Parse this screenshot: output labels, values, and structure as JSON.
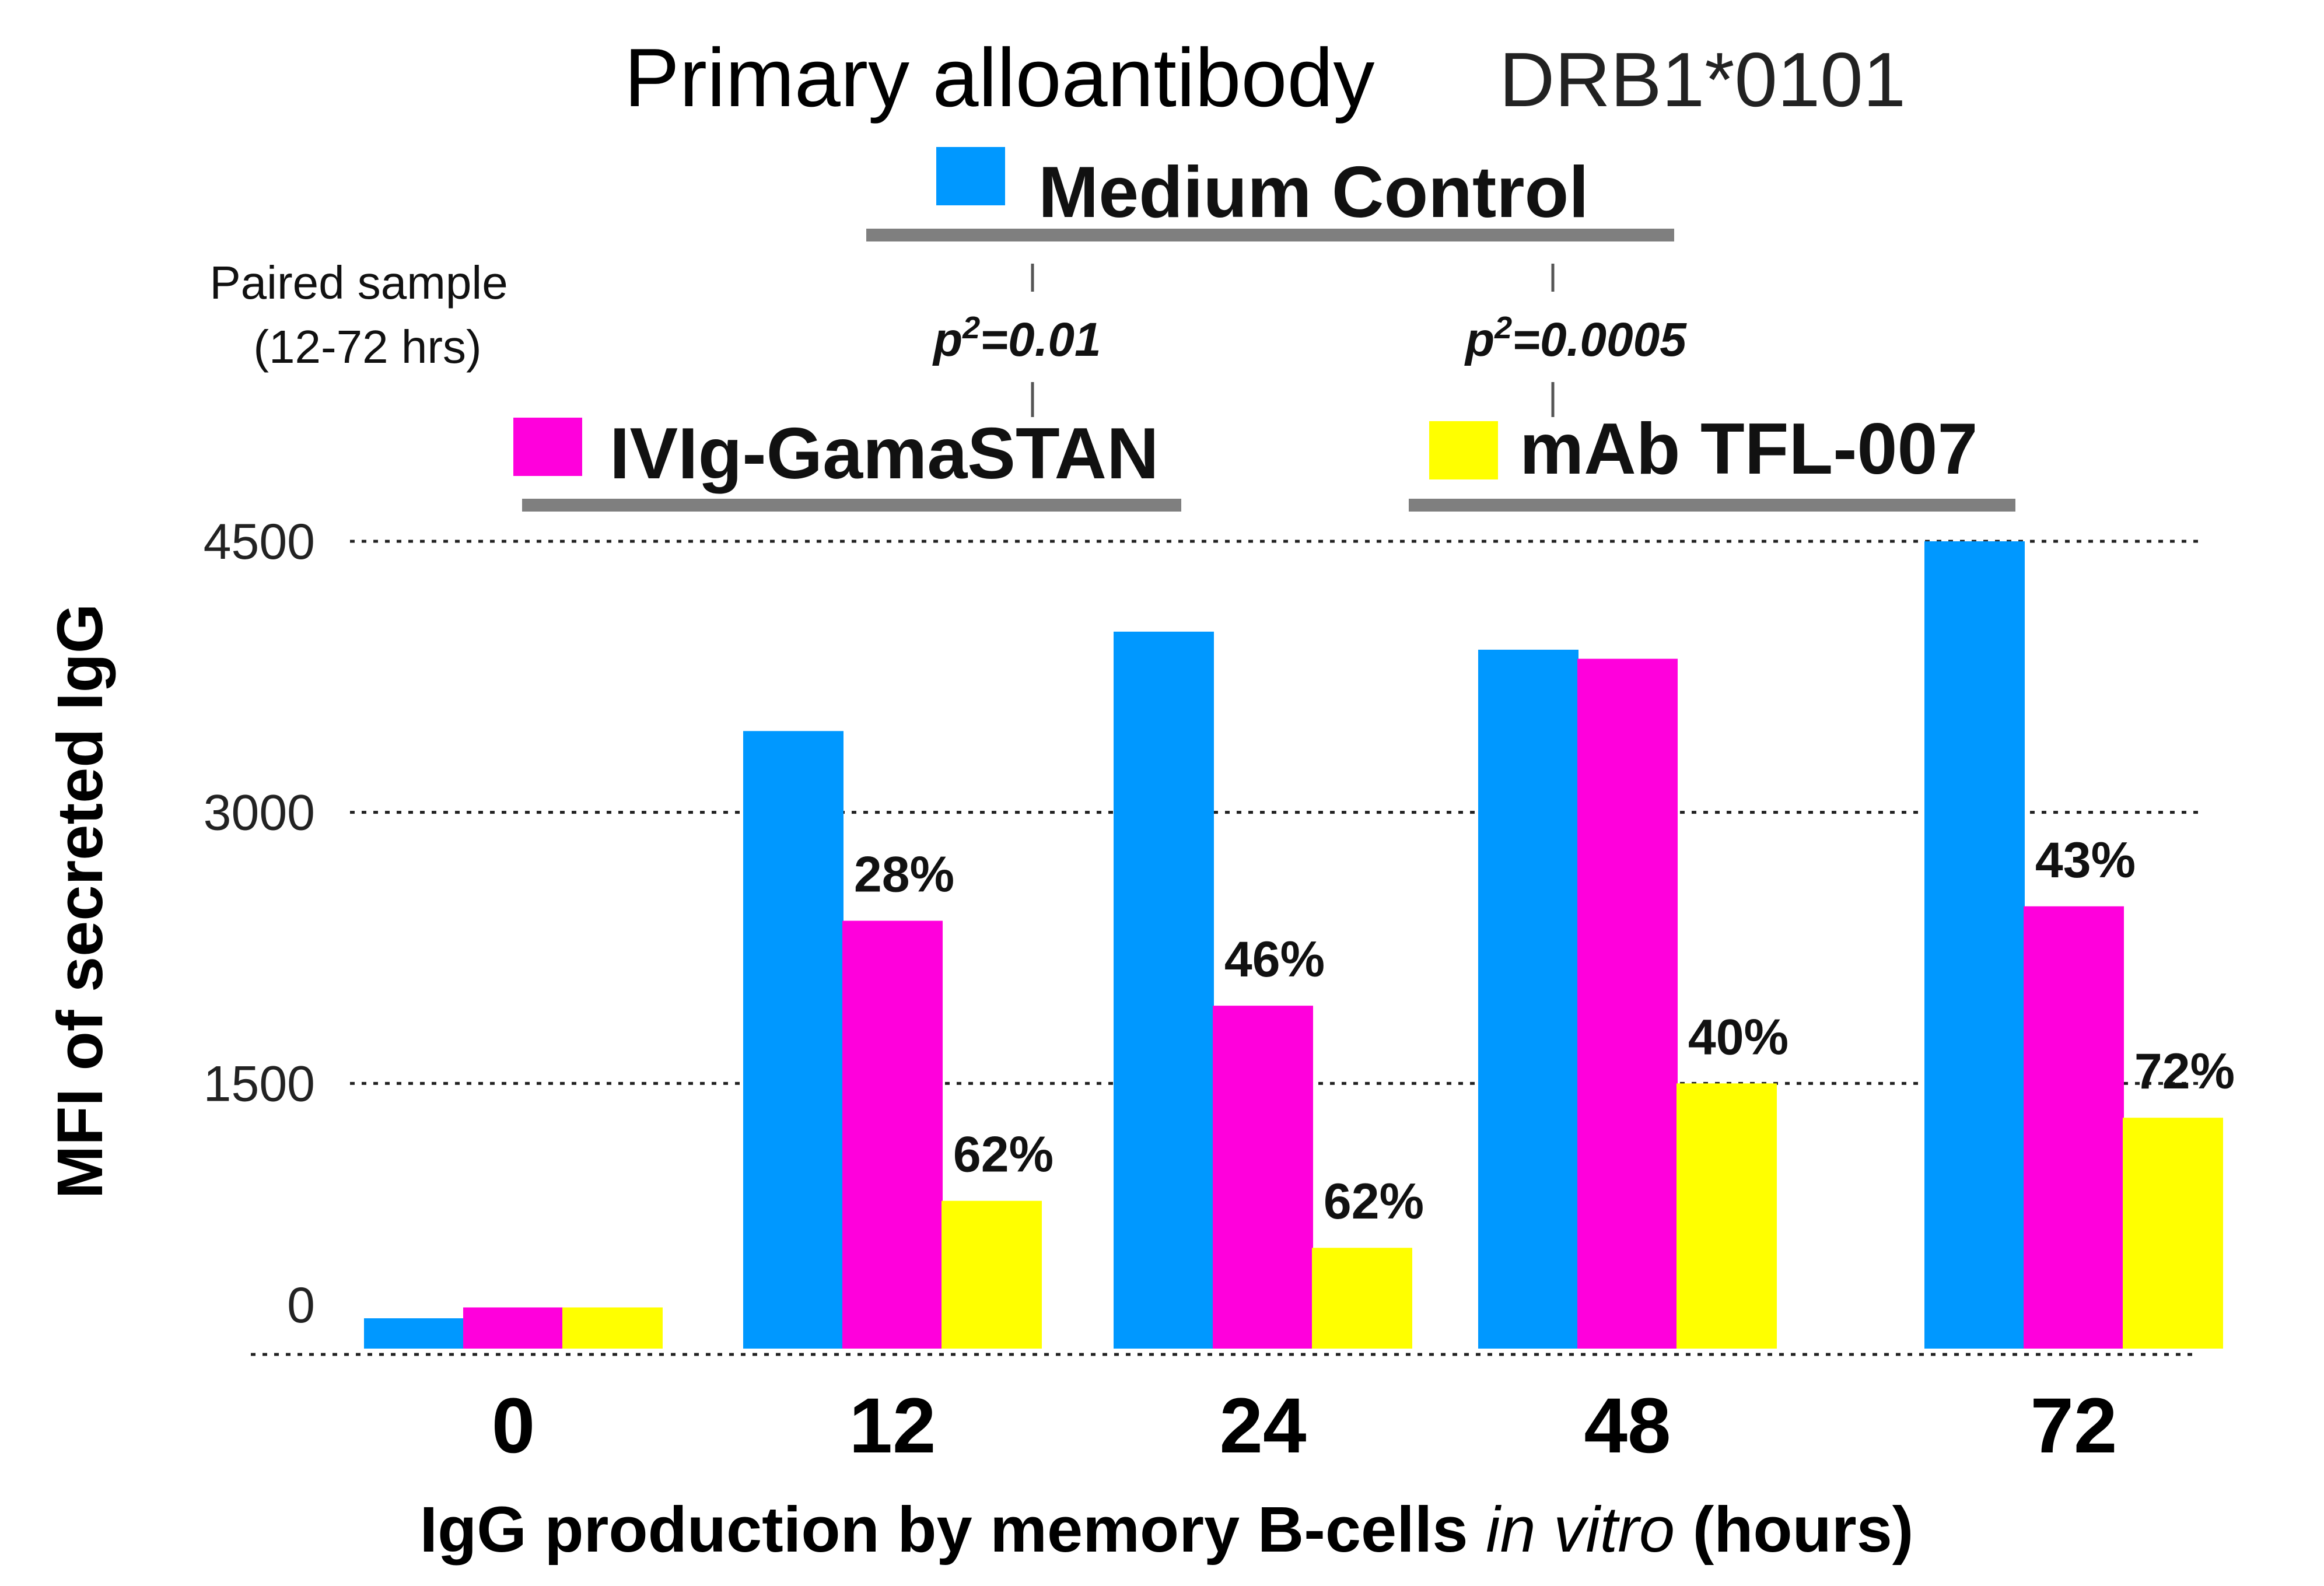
{
  "chart_data": {
    "type": "bar",
    "title": "Primary alloantibody",
    "subtitle": "DRB1*0101",
    "xlabel": "IgG production by memory B-cells in vitro (hours)",
    "xlabel_parts": [
      "IgG production by memory B-cells ",
      "in vitro",
      " (hours)"
    ],
    "ylabel": "MFI of secreted IgG",
    "ylim": [
      0,
      4500
    ],
    "yticks": [
      "0",
      "1500",
      "3000",
      "4500"
    ],
    "grid": true,
    "categories": [
      "0",
      "12",
      "24",
      "48",
      "72"
    ],
    "series": [
      {
        "name": "Medium Control",
        "color": "#0098ff",
        "values": [
          200,
          3450,
          4000,
          3900,
          4500
        ]
      },
      {
        "name": "IVIg-GamaSTAN",
        "color": "#ff00dc",
        "values": [
          260,
          2400,
          1930,
          3850,
          2480
        ]
      },
      {
        "name": "mAb TFL-007",
        "color": "#ffff00",
        "values": [
          260,
          850,
          590,
          1500,
          1310
        ]
      }
    ],
    "percent_labels": [
      {
        "series": "IVIg-GamaSTAN",
        "category": "12",
        "text": "28%"
      },
      {
        "series": "IVIg-GamaSTAN",
        "category": "24",
        "text": "46%"
      },
      {
        "series": "IVIg-GamaSTAN",
        "category": "72",
        "text": "43%"
      },
      {
        "series": "mAb TFL-007",
        "category": "12",
        "text": "62%"
      },
      {
        "series": "mAb TFL-007",
        "category": "24",
        "text": "62%"
      },
      {
        "series": "mAb TFL-007",
        "category": "48",
        "text": "40%"
      },
      {
        "series": "mAb TFL-007",
        "category": "72",
        "text": "72%"
      }
    ],
    "annotations": {
      "paired_sample_line1": "Paired sample",
      "paired_sample_line2": "(12-72 hrs)",
      "p_values": [
        {
          "prefix": "p",
          "sup": "2",
          "text": "=0.01",
          "between": [
            "Medium Control",
            "IVIg-GamaSTAN"
          ]
        },
        {
          "prefix": "p",
          "sup": "2",
          "text": "=0.0005",
          "between": [
            "Medium Control",
            "mAb TFL-007"
          ]
        }
      ]
    }
  }
}
